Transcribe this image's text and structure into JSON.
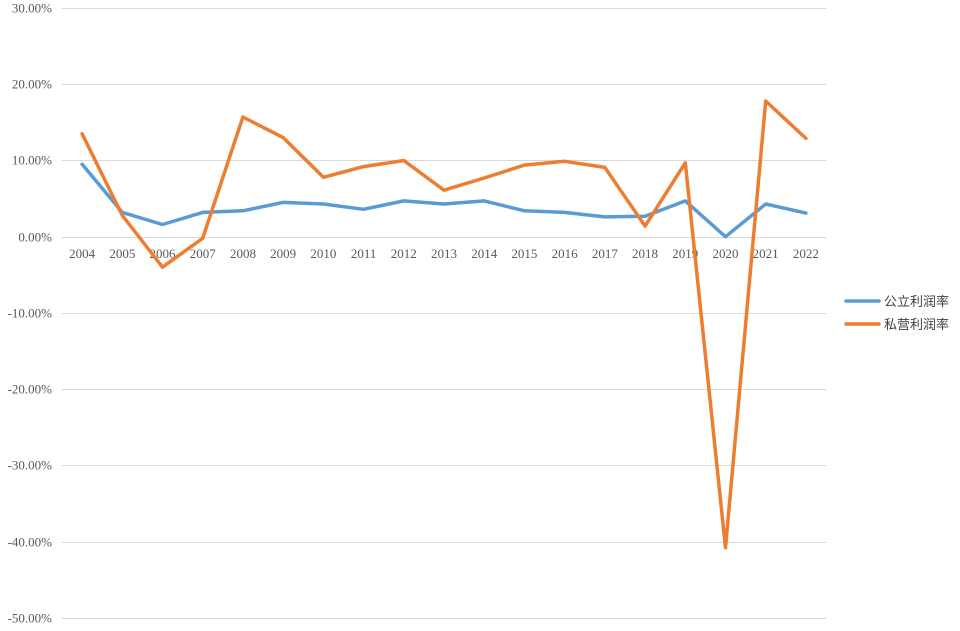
{
  "chart_data": {
    "type": "line",
    "categories": [
      "2004",
      "2005",
      "2006",
      "2007",
      "2008",
      "2009",
      "2010",
      "2011",
      "2012",
      "2013",
      "2014",
      "2015",
      "2016",
      "2017",
      "2018",
      "2019",
      "2020",
      "2021",
      "2022"
    ],
    "series": [
      {
        "name": "公立利润率",
        "color": "#5b9bd5",
        "values": [
          0.095,
          0.032,
          0.016,
          0.032,
          0.034,
          0.045,
          0.043,
          0.036,
          0.047,
          0.043,
          0.047,
          0.034,
          0.032,
          0.026,
          0.027,
          0.047,
          0.0,
          0.043,
          0.031
        ]
      },
      {
        "name": "私营利润率",
        "color": "#ed7d31",
        "values": [
          0.135,
          0.028,
          -0.04,
          -0.002,
          0.157,
          0.13,
          0.078,
          0.092,
          0.1,
          0.061,
          0.077,
          0.094,
          0.099,
          0.091,
          0.014,
          0.097,
          -0.408,
          0.178,
          0.129
        ]
      }
    ],
    "ylim": [
      -0.5,
      0.3
    ],
    "yticks": [
      0.3,
      0.2,
      0.1,
      0.0,
      -0.1,
      -0.2,
      -0.3,
      -0.4,
      -0.5
    ],
    "ytick_labels": [
      "30.00%",
      "20.00%",
      "10.00%",
      "0.00%",
      "-10.00%",
      "-20.00%",
      "-30.00%",
      "-40.00%",
      "-50.00%"
    ],
    "grid": true,
    "legend_position": "right",
    "title": "",
    "xlabel": "",
    "ylabel": ""
  }
}
